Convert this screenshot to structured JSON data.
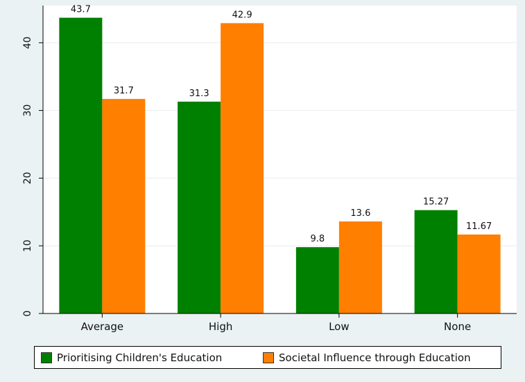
{
  "chart_data": {
    "type": "bar",
    "categories": [
      "Average",
      "High",
      "Low",
      "None"
    ],
    "series": [
      {
        "name": "Prioritising Children's Education",
        "values": [
          43.7,
          31.3,
          9.8,
          15.27
        ],
        "labels": [
          "43.7",
          "31.3",
          "9.8",
          "15.27"
        ],
        "color": "#008000"
      },
      {
        "name": "Societal Influence through Education",
        "values": [
          31.7,
          42.9,
          13.6,
          11.67
        ],
        "labels": [
          "31.7",
          "42.9",
          "13.6",
          "11.67"
        ],
        "color": "#ff7f00"
      }
    ],
    "yticks": [
      0,
      10,
      20,
      30,
      40
    ],
    "ytick_labels": [
      "0",
      "10",
      "20",
      "30",
      "40"
    ],
    "ylim": [
      0,
      45.5
    ],
    "grid": true,
    "legend_position": "bottom"
  }
}
